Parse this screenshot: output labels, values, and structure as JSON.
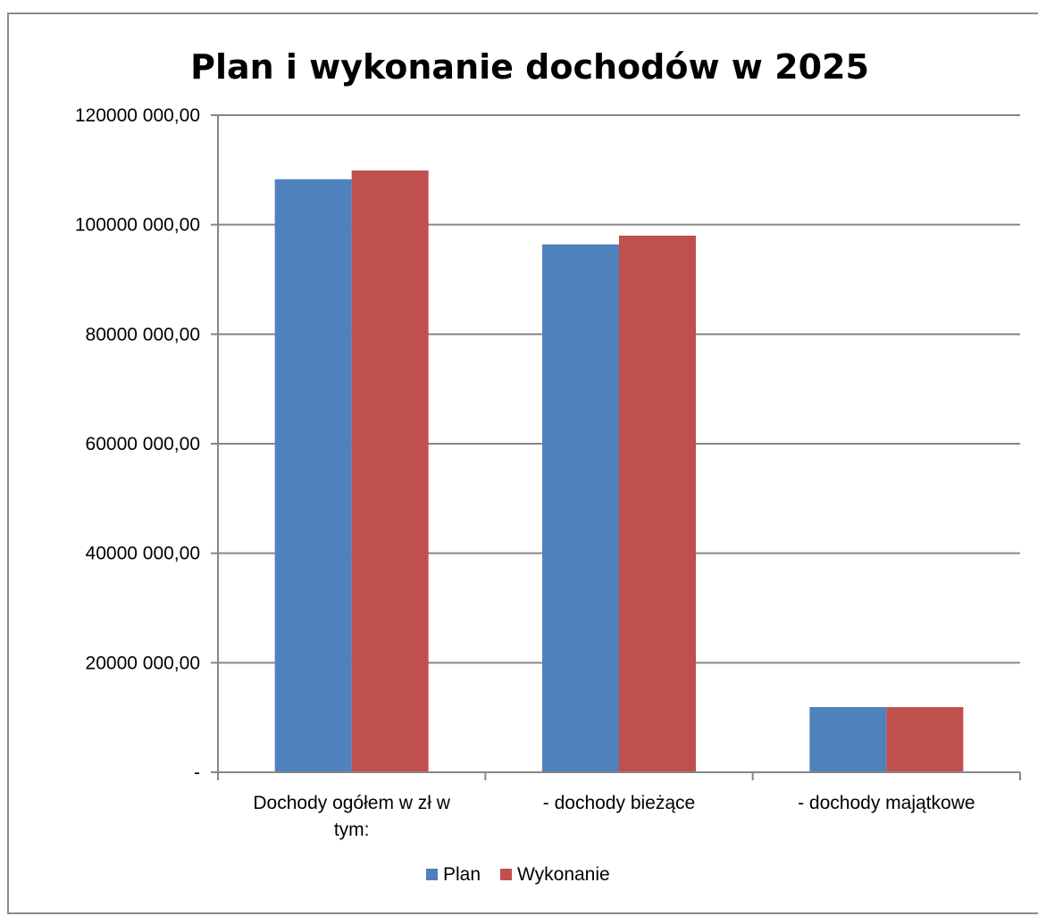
{
  "chart_data": {
    "type": "bar",
    "title": "Plan i wykonanie dochodów w 2025",
    "xlabel": "",
    "ylabel": "",
    "categories": [
      [
        "Dochody ogółem w zł w",
        "tym:"
      ],
      [
        "- dochody bieżące"
      ],
      [
        "- dochody majątkowe"
      ]
    ],
    "series": [
      {
        "name": "Plan",
        "color": "#4f81bd",
        "values": [
          108300000,
          96400000,
          11900000
        ]
      },
      {
        "name": "Wykonanie",
        "color": "#c0504d",
        "values": [
          109900000,
          98000000,
          11900000
        ]
      }
    ],
    "ylim": [
      0,
      120000000
    ],
    "yticks": [
      {
        "value": 0,
        "label": "-"
      },
      {
        "value": 20000000,
        "label": "20000 000,00"
      },
      {
        "value": 40000000,
        "label": "40000 000,00"
      },
      {
        "value": 60000000,
        "label": "60000 000,00"
      },
      {
        "value": 80000000,
        "label": "80000 000,00"
      },
      {
        "value": 100000000,
        "label": "100000 000,00"
      },
      {
        "value": 120000000,
        "label": "120000 000,00"
      }
    ],
    "grid": true,
    "legend_position": "bottom"
  }
}
